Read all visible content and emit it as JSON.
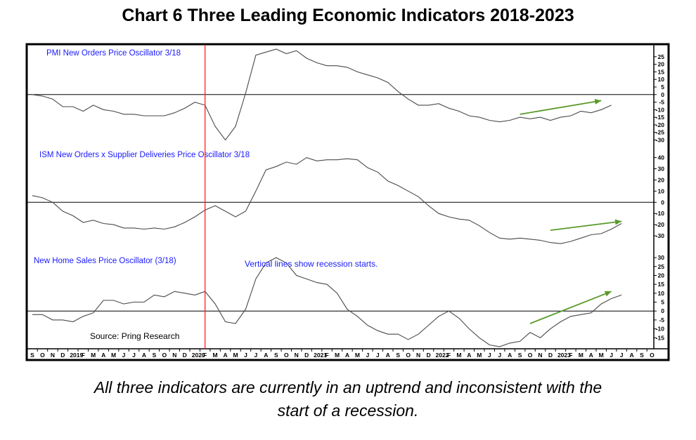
{
  "page": {
    "title": "Chart 6 Three Leading Economic Indicators 2018-2023",
    "caption_line1": "All three indicators are currently in an uptrend and inconsistent with the",
    "caption_line2": "start of a recession."
  },
  "chart_data": {
    "type": "line",
    "source": "Source: Pring Research",
    "annotation": "Vertical lines show recession starts.",
    "x_axis": {
      "start": "2018-09",
      "end": "2023-10",
      "tick_labels": [
        "S",
        "O",
        "N",
        "D",
        "2019",
        "F",
        "M",
        "A",
        "M",
        "J",
        "J",
        "A",
        "S",
        "O",
        "N",
        "D",
        "2020",
        "F",
        "M",
        "A",
        "M",
        "J",
        "J",
        "A",
        "S",
        "O",
        "N",
        "D",
        "2021",
        "F",
        "M",
        "A",
        "M",
        "J",
        "J",
        "A",
        "S",
        "O",
        "N",
        "D",
        "2022",
        "F",
        "M",
        "A",
        "M",
        "J",
        "J",
        "A",
        "S",
        "O",
        "N",
        "D",
        "2023",
        "F",
        "M",
        "A",
        "M",
        "J",
        "J",
        "A",
        "S",
        "O"
      ]
    },
    "recession_start": "2020-02",
    "colors": {
      "series": "#4a4a4a",
      "panel_label": "#1a1aff",
      "recession_line": "#ff2020",
      "trend_arrow": "#5a9a2a",
      "zero_line": "#000000"
    },
    "panels": [
      {
        "label": "PMI New Orders Price Oscillator 3/18",
        "ylim": [
          -33,
          30
        ],
        "ticks": [
          25,
          20,
          15,
          10,
          5,
          0,
          -5,
          -10,
          -15,
          -20,
          -25,
          -30
        ],
        "series": [
          {
            "x": "2018-09",
            "y": 0
          },
          {
            "x": "2018-10",
            "y": -1
          },
          {
            "x": "2018-11",
            "y": -3
          },
          {
            "x": "2018-12",
            "y": -8
          },
          {
            "x": "2019-01",
            "y": -8
          },
          {
            "x": "2019-02",
            "y": -11
          },
          {
            "x": "2019-03",
            "y": -7
          },
          {
            "x": "2019-04",
            "y": -10
          },
          {
            "x": "2019-05",
            "y": -11
          },
          {
            "x": "2019-06",
            "y": -13
          },
          {
            "x": "2019-07",
            "y": -13
          },
          {
            "x": "2019-08",
            "y": -14
          },
          {
            "x": "2019-09",
            "y": -14
          },
          {
            "x": "2019-10",
            "y": -14
          },
          {
            "x": "2019-11",
            "y": -12
          },
          {
            "x": "2019-12",
            "y": -9
          },
          {
            "x": "2020-01",
            "y": -5
          },
          {
            "x": "2020-02",
            "y": -7
          },
          {
            "x": "2020-03",
            "y": -21
          },
          {
            "x": "2020-04",
            "y": -30
          },
          {
            "x": "2020-05",
            "y": -21
          },
          {
            "x": "2020-06",
            "y": 1
          },
          {
            "x": "2020-07",
            "y": 26
          },
          {
            "x": "2020-08",
            "y": 28
          },
          {
            "x": "2020-09",
            "y": 30
          },
          {
            "x": "2020-10",
            "y": 27
          },
          {
            "x": "2020-11",
            "y": 29
          },
          {
            "x": "2020-12",
            "y": 24
          },
          {
            "x": "2021-01",
            "y": 21
          },
          {
            "x": "2021-02",
            "y": 19
          },
          {
            "x": "2021-03",
            "y": 19
          },
          {
            "x": "2021-04",
            "y": 18
          },
          {
            "x": "2021-05",
            "y": 15
          },
          {
            "x": "2021-06",
            "y": 13
          },
          {
            "x": "2021-07",
            "y": 11
          },
          {
            "x": "2021-08",
            "y": 8
          },
          {
            "x": "2021-09",
            "y": 2
          },
          {
            "x": "2021-10",
            "y": -3
          },
          {
            "x": "2021-11",
            "y": -7
          },
          {
            "x": "2021-12",
            "y": -7
          },
          {
            "x": "2022-01",
            "y": -6
          },
          {
            "x": "2022-02",
            "y": -9
          },
          {
            "x": "2022-03",
            "y": -11
          },
          {
            "x": "2022-04",
            "y": -14
          },
          {
            "x": "2022-05",
            "y": -15
          },
          {
            "x": "2022-06",
            "y": -17
          },
          {
            "x": "2022-07",
            "y": -18
          },
          {
            "x": "2022-08",
            "y": -17
          },
          {
            "x": "2022-09",
            "y": -15
          },
          {
            "x": "2022-10",
            "y": -16
          },
          {
            "x": "2022-11",
            "y": -15
          },
          {
            "x": "2022-12",
            "y": -17
          },
          {
            "x": "2023-01",
            "y": -15
          },
          {
            "x": "2023-02",
            "y": -14
          },
          {
            "x": "2023-03",
            "y": -11
          },
          {
            "x": "2023-04",
            "y": -12
          },
          {
            "x": "2023-05",
            "y": -10
          },
          {
            "x": "2023-06",
            "y": -7
          }
        ],
        "trend_arrow": {
          "from": {
            "x": "2022-09",
            "y": -13
          },
          "to": {
            "x": "2023-05",
            "y": -4
          }
        }
      },
      {
        "label": "ISM New  Orders x Supplier Deliveries Price Oscillator 3/18",
        "ylim": [
          -40,
          46
        ],
        "ticks": [
          40,
          30,
          20,
          10,
          0,
          -10,
          -20,
          -30
        ],
        "series": [
          {
            "x": "2018-09",
            "y": 6
          },
          {
            "x": "2018-10",
            "y": 4
          },
          {
            "x": "2018-11",
            "y": 0
          },
          {
            "x": "2018-12",
            "y": -8
          },
          {
            "x": "2019-01",
            "y": -12
          },
          {
            "x": "2019-02",
            "y": -18
          },
          {
            "x": "2019-03",
            "y": -16
          },
          {
            "x": "2019-04",
            "y": -19
          },
          {
            "x": "2019-05",
            "y": -20
          },
          {
            "x": "2019-06",
            "y": -23
          },
          {
            "x": "2019-07",
            "y": -23
          },
          {
            "x": "2019-08",
            "y": -24
          },
          {
            "x": "2019-09",
            "y": -23
          },
          {
            "x": "2019-10",
            "y": -24
          },
          {
            "x": "2019-11",
            "y": -22
          },
          {
            "x": "2019-12",
            "y": -18
          },
          {
            "x": "2020-01",
            "y": -13
          },
          {
            "x": "2020-02",
            "y": -7
          },
          {
            "x": "2020-03",
            "y": -3
          },
          {
            "x": "2020-04",
            "y": -8
          },
          {
            "x": "2020-05",
            "y": -13
          },
          {
            "x": "2020-06",
            "y": -8
          },
          {
            "x": "2020-07",
            "y": 10
          },
          {
            "x": "2020-08",
            "y": 29
          },
          {
            "x": "2020-09",
            "y": 32
          },
          {
            "x": "2020-10",
            "y": 36
          },
          {
            "x": "2020-11",
            "y": 34
          },
          {
            "x": "2020-12",
            "y": 40
          },
          {
            "x": "2021-01",
            "y": 37
          },
          {
            "x": "2021-02",
            "y": 38
          },
          {
            "x": "2021-03",
            "y": 38
          },
          {
            "x": "2021-04",
            "y": 39
          },
          {
            "x": "2021-05",
            "y": 38
          },
          {
            "x": "2021-06",
            "y": 31
          },
          {
            "x": "2021-07",
            "y": 27
          },
          {
            "x": "2021-08",
            "y": 19
          },
          {
            "x": "2021-09",
            "y": 15
          },
          {
            "x": "2021-10",
            "y": 10
          },
          {
            "x": "2021-11",
            "y": 5
          },
          {
            "x": "2021-12",
            "y": -3
          },
          {
            "x": "2022-01",
            "y": -10
          },
          {
            "x": "2022-02",
            "y": -13
          },
          {
            "x": "2022-03",
            "y": -15
          },
          {
            "x": "2022-04",
            "y": -16
          },
          {
            "x": "2022-05",
            "y": -21
          },
          {
            "x": "2022-06",
            "y": -27
          },
          {
            "x": "2022-07",
            "y": -32
          },
          {
            "x": "2022-08",
            "y": -33
          },
          {
            "x": "2022-09",
            "y": -32
          },
          {
            "x": "2022-10",
            "y": -33
          },
          {
            "x": "2022-11",
            "y": -34
          },
          {
            "x": "2022-12",
            "y": -36
          },
          {
            "x": "2023-01",
            "y": -37
          },
          {
            "x": "2023-02",
            "y": -35
          },
          {
            "x": "2023-03",
            "y": -32
          },
          {
            "x": "2023-04",
            "y": -29
          },
          {
            "x": "2023-05",
            "y": -28
          },
          {
            "x": "2023-06",
            "y": -24
          },
          {
            "x": "2023-07",
            "y": -19
          }
        ],
        "trend_arrow": {
          "from": {
            "x": "2022-12",
            "y": -25
          },
          "to": {
            "x": "2023-07",
            "y": -17
          }
        }
      },
      {
        "label": "New Home Sales Price Oscillator (3/18)",
        "ylim": [
          -20,
          32
        ],
        "ticks": [
          30,
          25,
          20,
          15,
          10,
          5,
          0,
          -5,
          -10,
          -15
        ],
        "series": [
          {
            "x": "2018-09",
            "y": -2
          },
          {
            "x": "2018-10",
            "y": -2
          },
          {
            "x": "2018-11",
            "y": -5
          },
          {
            "x": "2018-12",
            "y": -5
          },
          {
            "x": "2019-01",
            "y": -6
          },
          {
            "x": "2019-02",
            "y": -3
          },
          {
            "x": "2019-03",
            "y": -1
          },
          {
            "x": "2019-04",
            "y": 6
          },
          {
            "x": "2019-05",
            "y": 6
          },
          {
            "x": "2019-06",
            "y": 4
          },
          {
            "x": "2019-07",
            "y": 5
          },
          {
            "x": "2019-08",
            "y": 5
          },
          {
            "x": "2019-09",
            "y": 9
          },
          {
            "x": "2019-10",
            "y": 8
          },
          {
            "x": "2019-11",
            "y": 11
          },
          {
            "x": "2019-12",
            "y": 10
          },
          {
            "x": "2020-01",
            "y": 9
          },
          {
            "x": "2020-02",
            "y": 11
          },
          {
            "x": "2020-03",
            "y": 4
          },
          {
            "x": "2020-04",
            "y": -6
          },
          {
            "x": "2020-05",
            "y": -7
          },
          {
            "x": "2020-06",
            "y": 1
          },
          {
            "x": "2020-07",
            "y": 18
          },
          {
            "x": "2020-08",
            "y": 27
          },
          {
            "x": "2020-09",
            "y": 30
          },
          {
            "x": "2020-10",
            "y": 27
          },
          {
            "x": "2020-11",
            "y": 20
          },
          {
            "x": "2020-12",
            "y": 18
          },
          {
            "x": "2021-01",
            "y": 16
          },
          {
            "x": "2021-02",
            "y": 15
          },
          {
            "x": "2021-03",
            "y": 10
          },
          {
            "x": "2021-04",
            "y": 1
          },
          {
            "x": "2021-05",
            "y": -3
          },
          {
            "x": "2021-06",
            "y": -8
          },
          {
            "x": "2021-07",
            "y": -11
          },
          {
            "x": "2021-08",
            "y": -13
          },
          {
            "x": "2021-09",
            "y": -13
          },
          {
            "x": "2021-10",
            "y": -16
          },
          {
            "x": "2021-11",
            "y": -13
          },
          {
            "x": "2021-12",
            "y": -8
          },
          {
            "x": "2022-01",
            "y": -3
          },
          {
            "x": "2022-02",
            "y": 0
          },
          {
            "x": "2022-03",
            "y": -4
          },
          {
            "x": "2022-04",
            "y": -10
          },
          {
            "x": "2022-05",
            "y": -15
          },
          {
            "x": "2022-06",
            "y": -19
          },
          {
            "x": "2022-07",
            "y": -20
          },
          {
            "x": "2022-08",
            "y": -18
          },
          {
            "x": "2022-09",
            "y": -17
          },
          {
            "x": "2022-10",
            "y": -12
          },
          {
            "x": "2022-11",
            "y": -15
          },
          {
            "x": "2022-12",
            "y": -10
          },
          {
            "x": "2023-01",
            "y": -6
          },
          {
            "x": "2023-02",
            "y": -3
          },
          {
            "x": "2023-03",
            "y": -2
          },
          {
            "x": "2023-04",
            "y": -1
          },
          {
            "x": "2023-05",
            "y": 4
          },
          {
            "x": "2023-06",
            "y": 7
          },
          {
            "x": "2023-07",
            "y": 9
          }
        ],
        "trend_arrow": {
          "from": {
            "x": "2022-10",
            "y": -7
          },
          "to": {
            "x": "2023-06",
            "y": 11
          }
        }
      }
    ]
  }
}
